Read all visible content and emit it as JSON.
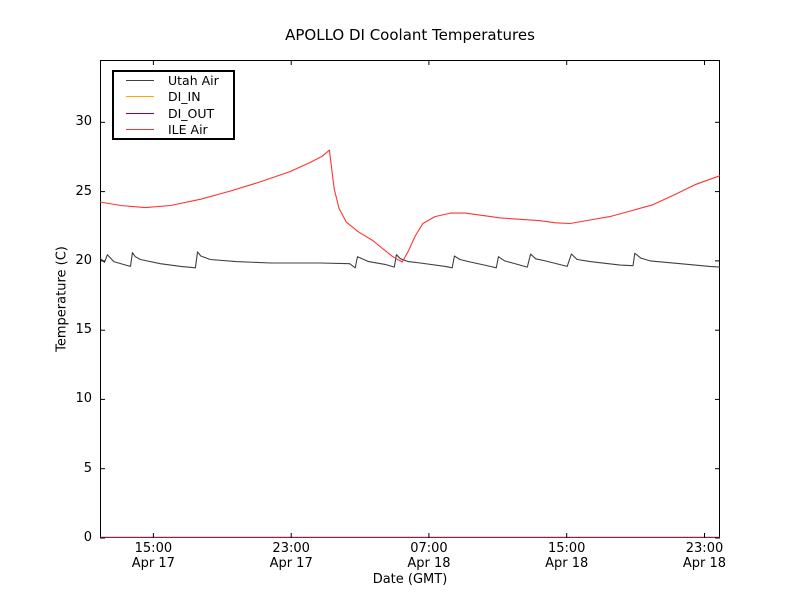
{
  "figure": {
    "background": "#ffffff",
    "axis_color": "#000000"
  },
  "chart_data": {
    "type": "line",
    "title": "APOLLO DI Coolant Temperatures",
    "xlabel": "Date (GMT)",
    "ylabel": "Temperature (C)",
    "grid": false,
    "legend_position": "upper left",
    "x_unit": "hours since Apr 17 00:00 GMT",
    "xlim": [
      11.9,
      47.9
    ],
    "ylim": [
      0,
      34.5
    ],
    "x_ticks": [
      {
        "t": 15,
        "time": "15:00",
        "date": "Apr 17"
      },
      {
        "t": 23,
        "time": "23:00",
        "date": "Apr 17"
      },
      {
        "t": 31,
        "time": "07:00",
        "date": "Apr 18"
      },
      {
        "t": 39,
        "time": "15:00",
        "date": "Apr 18"
      },
      {
        "t": 47,
        "time": "23:00",
        "date": "Apr 18"
      }
    ],
    "y_ticks": [
      {
        "v": 0,
        "label": "0"
      },
      {
        "v": 5,
        "label": "5"
      },
      {
        "v": 10,
        "label": "10"
      },
      {
        "v": 15,
        "label": "15"
      },
      {
        "v": 20,
        "label": "20"
      },
      {
        "v": 25,
        "label": "25"
      },
      {
        "v": 30,
        "label": "30"
      }
    ],
    "series": [
      {
        "name": "Utah Air",
        "color": "#3f3f3f",
        "width": 1.1,
        "opacity": 1,
        "points": [
          [
            11.9,
            20.2
          ],
          [
            12.16,
            19.9
          ],
          [
            12.33,
            20.45
          ],
          [
            12.7,
            19.95
          ],
          [
            13.4,
            19.7
          ],
          [
            13.67,
            19.6
          ],
          [
            13.78,
            20.6
          ],
          [
            13.95,
            20.3
          ],
          [
            14.25,
            20.1
          ],
          [
            15.4,
            19.8
          ],
          [
            16.6,
            19.6
          ],
          [
            17.44,
            19.5
          ],
          [
            17.56,
            20.65
          ],
          [
            17.75,
            20.35
          ],
          [
            18.3,
            20.1
          ],
          [
            19.8,
            19.95
          ],
          [
            21.8,
            19.85
          ],
          [
            24.7,
            19.85
          ],
          [
            26.4,
            19.8
          ],
          [
            26.72,
            19.5
          ],
          [
            26.85,
            20.3
          ],
          [
            27.5,
            19.95
          ],
          [
            28.45,
            19.75
          ],
          [
            28.99,
            19.55
          ],
          [
            29.11,
            20.45
          ],
          [
            29.35,
            20.15
          ],
          [
            29.8,
            19.95
          ],
          [
            30.5,
            19.85
          ],
          [
            31.95,
            19.6
          ],
          [
            32.35,
            19.5
          ],
          [
            32.48,
            20.35
          ],
          [
            32.8,
            20.1
          ],
          [
            33.3,
            19.95
          ],
          [
            34.56,
            19.6
          ],
          [
            34.91,
            19.5
          ],
          [
            35.03,
            20.3
          ],
          [
            35.4,
            20.0
          ],
          [
            35.85,
            19.85
          ],
          [
            36.71,
            19.55
          ],
          [
            36.9,
            20.5
          ],
          [
            37.2,
            20.15
          ],
          [
            37.75,
            20.0
          ],
          [
            39.03,
            19.6
          ],
          [
            39.27,
            20.5
          ],
          [
            39.6,
            20.1
          ],
          [
            40.36,
            19.95
          ],
          [
            42.1,
            19.7
          ],
          [
            42.85,
            19.65
          ],
          [
            42.95,
            20.55
          ],
          [
            43.3,
            20.2
          ],
          [
            43.85,
            20.0
          ],
          [
            45.6,
            19.8
          ],
          [
            47.3,
            19.6
          ],
          [
            47.9,
            19.55
          ]
        ]
      },
      {
        "name": "DI_IN",
        "color": "#ffa500",
        "width": 1.2,
        "opacity": 0.6,
        "points": [
          [
            11.9,
            0.05
          ],
          [
            47.9,
            0.05
          ]
        ]
      },
      {
        "name": "DI_OUT",
        "color": "#800080",
        "width": 1.2,
        "opacity": 0.6,
        "points": [
          [
            11.9,
            0.05
          ],
          [
            47.9,
            0.05
          ]
        ]
      },
      {
        "name": "ILE Air",
        "color": "#ff3333",
        "width": 1.1,
        "opacity": 1,
        "points": [
          [
            11.9,
            24.25
          ],
          [
            13.1,
            24.0
          ],
          [
            14.55,
            23.85
          ],
          [
            16.0,
            24.0
          ],
          [
            17.75,
            24.45
          ],
          [
            19.5,
            25.05
          ],
          [
            21.2,
            25.7
          ],
          [
            22.95,
            26.45
          ],
          [
            24.1,
            27.1
          ],
          [
            24.8,
            27.55
          ],
          [
            25.22,
            28.0
          ],
          [
            25.32,
            27.0
          ],
          [
            25.5,
            25.2
          ],
          [
            25.78,
            23.8
          ],
          [
            26.2,
            22.8
          ],
          [
            26.9,
            22.1
          ],
          [
            27.7,
            21.5
          ],
          [
            28.3,
            20.9
          ],
          [
            28.9,
            20.3
          ],
          [
            29.45,
            19.92
          ],
          [
            29.8,
            20.7
          ],
          [
            30.2,
            21.8
          ],
          [
            30.65,
            22.7
          ],
          [
            31.35,
            23.2
          ],
          [
            32.25,
            23.45
          ],
          [
            33.1,
            23.45
          ],
          [
            34.0,
            23.3
          ],
          [
            35.15,
            23.1
          ],
          [
            36.3,
            23.0
          ],
          [
            37.45,
            22.9
          ],
          [
            38.35,
            22.75
          ],
          [
            39.2,
            22.7
          ],
          [
            40.35,
            22.95
          ],
          [
            41.5,
            23.2
          ],
          [
            42.7,
            23.6
          ],
          [
            44.0,
            24.05
          ],
          [
            45.3,
            24.8
          ],
          [
            46.45,
            25.5
          ],
          [
            47.9,
            26.15
          ]
        ]
      }
    ]
  }
}
